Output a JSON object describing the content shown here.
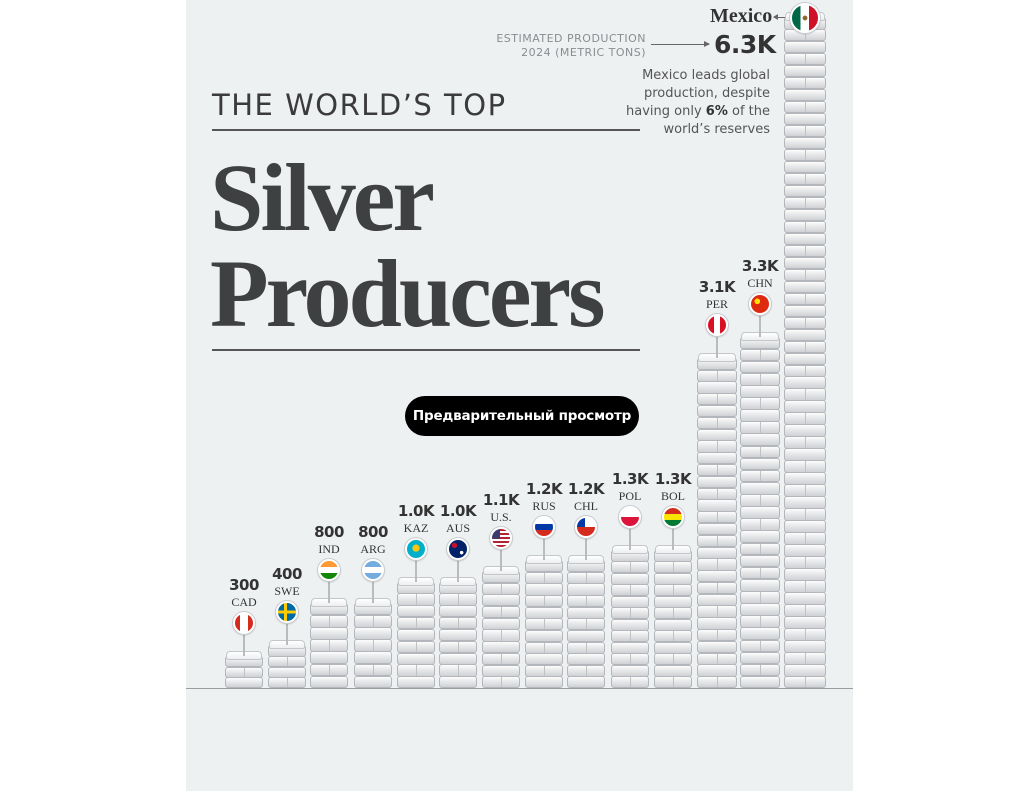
{
  "title": {
    "kicker": "THE WORLD’S TOP",
    "line1": "Silver",
    "line2": "Producers"
  },
  "annotation": {
    "estimate_label_line1": "ESTIMATED PRODUCTION",
    "estimate_label_line2": "2024 (METRIC TONS)",
    "leader_name": "Mexico",
    "leader_value": "6.3K",
    "note_part1": "Mexico leads global production, despite having only ",
    "note_highlight": "6%",
    "note_part2": " of the world’s reserves"
  },
  "preview_button": {
    "label": "Предварительный просмотр"
  },
  "chart_data": {
    "type": "bar",
    "unit": "metric tons",
    "categories": [
      "CAD",
      "SWE",
      "IND",
      "ARG",
      "KAZ",
      "AUS",
      "U.S.",
      "RUS",
      "CHL",
      "POL",
      "BOL",
      "PER",
      "CHN",
      "Mexico"
    ],
    "value_labels": [
      "300",
      "400",
      "800",
      "800",
      "1.0K",
      "1.0K",
      "1.1K",
      "1.2K",
      "1.2K",
      "1.3K",
      "1.3K",
      "3.1K",
      "3.3K",
      "6.3K"
    ],
    "values": [
      300,
      400,
      800,
      800,
      1000,
      1000,
      1100,
      1200,
      1200,
      1300,
      1300,
      3100,
      3300,
      6300
    ],
    "flag_icons": [
      "flag-canada-icon",
      "flag-sweden-icon",
      "flag-india-icon",
      "flag-argentina-icon",
      "flag-kazakhstan-icon",
      "flag-australia-icon",
      "flag-usa-icon",
      "flag-russia-icon",
      "flag-chile-icon",
      "flag-poland-icon",
      "flag-bolivia-icon",
      "flag-peru-icon",
      "flag-china-icon",
      "flag-mexico-icon"
    ],
    "colors": {
      "bar": "#e5e7e9",
      "background": "#eef1f2",
      "text": "#3f4041"
    }
  }
}
